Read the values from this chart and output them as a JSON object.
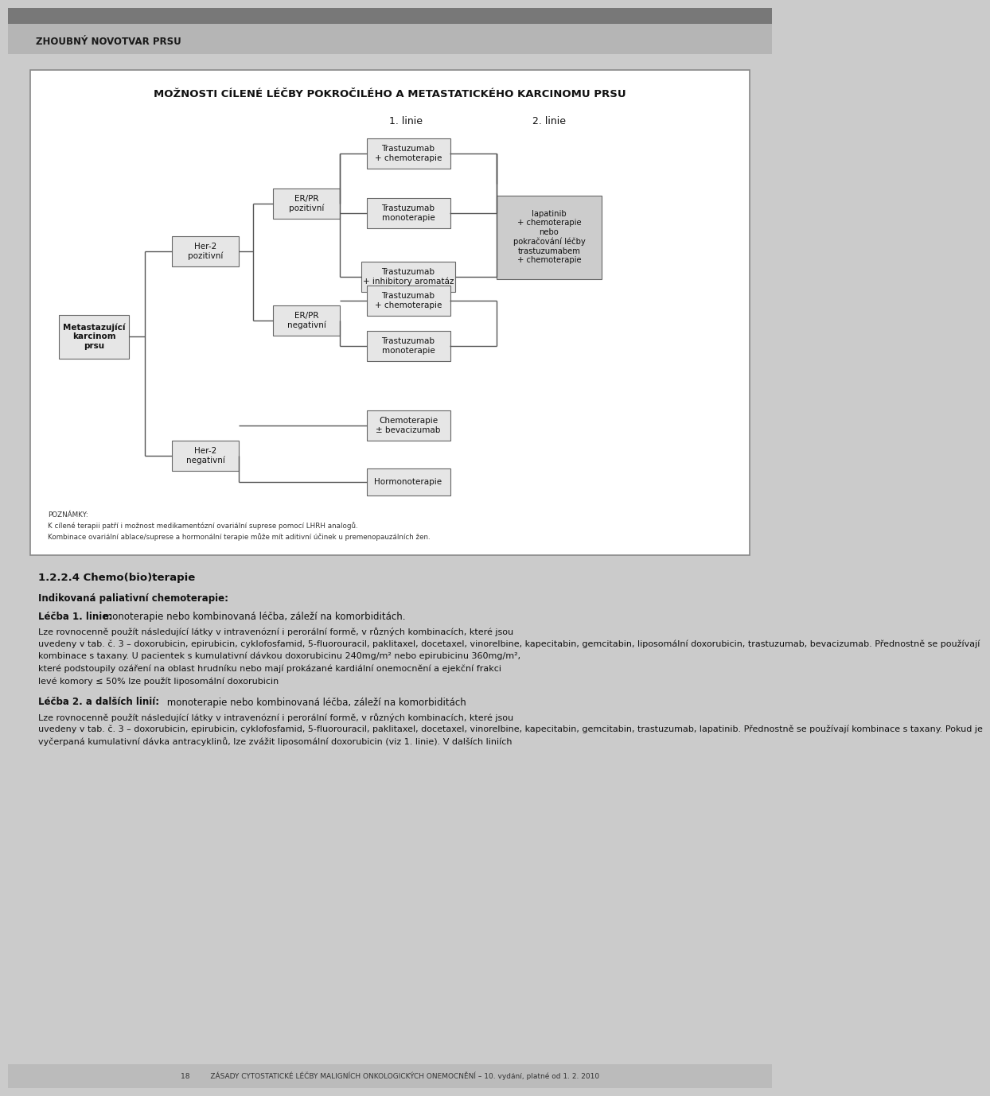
{
  "page_bg": "#cbcbcb",
  "header_text": "ZHOUBNÝ NOVOTVAR PRSU",
  "panel_title": "MOŽNOSTI CÍLENÉ LÉČBY POKROČILÉHO A METASTATICKÉHO KARCINOMU PRSU",
  "linie1_label": "1. linie",
  "linie2_label": "2. linie",
  "box_fill": "#e6e6e6",
  "box_fill_dark": "#cccccc",
  "box_border": "#666666",
  "line_color": "#555555",
  "white": "#ffffff",
  "n_metasta": "Metastazující\nkarcinom\nprsu",
  "n_her2pos": "Her-2\npozitivní",
  "n_her2neg": "Her-2\nnegativní",
  "n_erprpos": "ER/PR\npozitivní",
  "n_erprneg": "ER/PR\nnegativní",
  "n_t1": "Trastuzumab\n+ chemoterapie",
  "n_t2": "Trastuzumab\nmonoterapie",
  "n_t3": "Trastuzumab\n+ inhibitory aromatáz",
  "n_t4": "Trastuzumab\n+ chemoterapie",
  "n_t5": "Trastuzumab\nmonoterapie",
  "n_chemo": "Chemoterapie\n± bevacizumab",
  "n_hormono": "Hormonoterapie",
  "n_lapatinib": "lapatinib\n+ chemoterapie\nnebo\npokračování léčby\ntrastuzumabem\n+ chemoterapie",
  "footnote": "POZNÁMKY:\nK cílené terapii patří i možnost medikamentózní ovariální suprese pomocí LHRH analogů.\nKombinace ovariální ablace/suprese a hormonální terapie může mít aditivní účinek u premenopauzálních žen.",
  "sec_title": "1.2.2.4 Chemo(bio)terapie",
  "b_indikace": "Indikovaná paliativní chemoterapie:",
  "b_lecba1": "Léčba 1. linie:",
  "t_lecba1": " monoterapie nebo kombinovaná léčba, záleží na komorbiditách.",
  "t_para3_line1": "Lze rovnocenně použít následující látky v intravenózní i perorální formě, v různých kombinacích, které jsou",
  "t_para3_line2": "uvedeny v tab. č. 3 – doxorubicin, epirubicin, cyklofosfamid, 5-fluorouracil, paklitaxel, docetaxel, vinorelbine, kapecitabin, gemcitabin, liposomální doxorubicin, trastuzumab, bevacizumab. Přednostně se používají",
  "t_para3_line3": "kombinace s taxany. U pacientek s kumulativní dávkou doxorubicinu 240mg/m² nebo epirubicinu 360mg/m²,",
  "t_para3_line4": "které podstoupily ozáření na oblast hrudníku nebo mají prokázané kardiální onemocnění a ejekční frakci",
  "t_para3_line5": "levé komory ≤ 50% lze použít liposomální doxorubicin",
  "b_lecba2": "Léčba 2. a dalších linií:",
  "t_lecba2": " monoterapie nebo kombinovaná léčba, záleží na komorbiditách",
  "t_para5_line1": "Lze rovnocenně použít následující látky v intravenózní i perorální formě, v různých kombinacích, které jsou",
  "t_para5_line2": "uvedeny v tab. č. 3 – doxorubicin, epirubicin, cyklofosfamid, 5-fluorouracil, paklitaxel, docetaxel, vinorelbine, kapecitabin, gemcitabin, trastuzumab, lapatinib. Přednostně se používají kombinace s taxany. Pokud je",
  "t_para5_line3": "vyčerpaná kumulativní dávka antracyklinů, lze zvážit liposomální doxorubicin (viz 1. linie). V dalších liniích",
  "bottom_bar": "18         ZÁSADY CYTOSTATICKÉ LÉČBY MALIGNÍCH ONKOLOGICKÝCH ONEMOCNĚNÍ – 10. vydání, platné od 1. 2. 2010"
}
